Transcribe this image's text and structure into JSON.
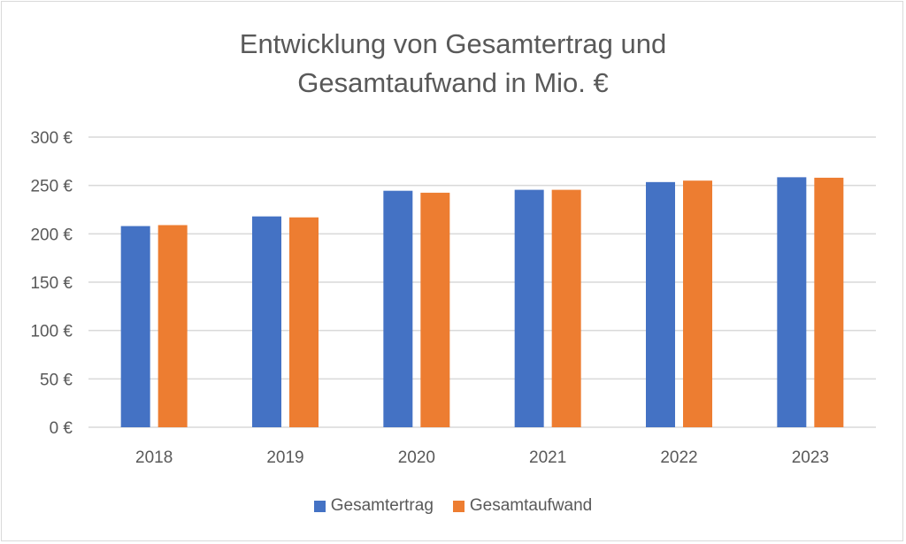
{
  "chart_data": {
    "type": "bar",
    "title_lines": [
      "Entwicklung von Gesamtertrag und",
      "Gesamtaufwand in Mio. €"
    ],
    "categories": [
      "2018",
      "2019",
      "2020",
      "2021",
      "2022",
      "2023"
    ],
    "series": [
      {
        "name": "Gesamtertrag",
        "color": "#4472c4",
        "values": [
          208,
          218,
          244.5,
          245.5,
          253.5,
          258.5
        ]
      },
      {
        "name": "Gesamtaufwand",
        "color": "#ed7d31",
        "values": [
          209,
          217,
          242.5,
          245.5,
          255,
          258
        ]
      }
    ],
    "yticks": [
      0,
      50,
      100,
      150,
      200,
      250,
      300
    ],
    "ytick_labels": [
      "0 €",
      "50 €",
      "100 €",
      "150 €",
      "200 €",
      "250 €",
      "300 €"
    ],
    "ylim": [
      0,
      300
    ],
    "xlabel": "",
    "ylabel": "",
    "grid": true,
    "legend": "bottom"
  }
}
